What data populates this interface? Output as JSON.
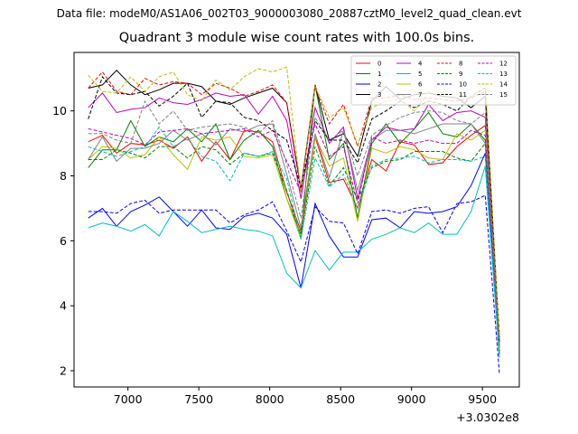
{
  "header": {
    "suptitle": "Data file: modeM0/AS1A06_002T03_9000003080_20887cztM0_level2_quad_clean.evt",
    "title": "Quadrant 3 module wise count rates with 100.0s bins."
  },
  "chart_data": {
    "type": "line",
    "title": "Quadrant 3 module wise count rates with 100.0s bins.",
    "xlabel": "",
    "ylabel": "",
    "x_offset_label": "+3.0302e8",
    "xlim": [
      6620,
      9760
    ],
    "ylim": [
      1.5,
      11.8
    ],
    "x_ticks": [
      7000,
      7500,
      8000,
      8500,
      9000,
      9500
    ],
    "y_ticks": [
      2,
      4,
      6,
      8,
      10
    ],
    "legend_position": "top-right",
    "legend_columns": 4,
    "grid": false,
    "x": [
      6720,
      6820,
      6920,
      7020,
      7120,
      7220,
      7320,
      7420,
      7520,
      7620,
      7720,
      7820,
      7920,
      8020,
      8120,
      8220,
      8320,
      8420,
      8520,
      8620,
      8720,
      8820,
      8920,
      9020,
      9120,
      9220,
      9320,
      9420,
      9520,
      9620
    ],
    "series": [
      {
        "name": "0",
        "color": "#ff0000",
        "dash": false,
        "values": [
          9.05,
          9.25,
          8.7,
          9.0,
          8.95,
          9.1,
          8.85,
          9.2,
          8.45,
          9.05,
          8.5,
          9.4,
          9.35,
          9.05,
          7.5,
          6.3,
          9.2,
          7.8,
          7.9,
          7.0,
          8.5,
          8.15,
          9.05,
          8.95,
          8.35,
          8.4,
          8.9,
          9.25,
          9.55,
          3.1
        ]
      },
      {
        "name": "1",
        "color": "#008000",
        "dash": false,
        "values": [
          8.25,
          8.8,
          8.8,
          9.7,
          8.9,
          9.2,
          9.05,
          9.45,
          9.05,
          9.6,
          8.5,
          9.1,
          9.4,
          8.9,
          7.3,
          6.2,
          10.8,
          8.5,
          9.0,
          6.7,
          9.0,
          9.6,
          9.0,
          9.45,
          9.95,
          9.3,
          9.2,
          9.6,
          9.1,
          2.8
        ]
      },
      {
        "name": "2",
        "color": "#0000ff",
        "dash": false,
        "values": [
          6.7,
          7.0,
          6.45,
          6.9,
          7.1,
          7.35,
          6.9,
          6.45,
          6.95,
          6.4,
          6.35,
          6.75,
          6.85,
          6.7,
          6.2,
          4.55,
          7.15,
          6.15,
          5.5,
          5.5,
          6.65,
          6.7,
          6.4,
          6.9,
          6.85,
          6.9,
          7.05,
          7.7,
          8.7,
          2.5
        ]
      },
      {
        "name": "3",
        "color": "#000000",
        "dash": false,
        "values": [
          10.7,
          10.8,
          11.25,
          10.8,
          10.5,
          10.65,
          10.85,
          10.85,
          10.75,
          10.3,
          10.2,
          10.4,
          10.55,
          10.7,
          10.25,
          7.6,
          10.8,
          9.1,
          9.3,
          8.6,
          10.3,
          10.75,
          10.35,
          10.5,
          10.55,
          10.45,
          10.4,
          10.1,
          10.45,
          2.9
        ]
      },
      {
        "name": "4",
        "color": "#c000c0",
        "dash": false,
        "values": [
          10.1,
          10.55,
          9.95,
          10.05,
          10.1,
          10.4,
          10.25,
          10.2,
          10.35,
          10.55,
          10.45,
          10.5,
          9.9,
          10.45,
          9.7,
          7.3,
          10.1,
          9.0,
          9.5,
          7.3,
          9.1,
          9.5,
          9.4,
          9.45,
          10.2,
          9.7,
          9.95,
          10.0,
          9.8,
          2.7
        ]
      },
      {
        "name": "5",
        "color": "#00bfbf",
        "dash": false,
        "values": [
          6.4,
          6.55,
          6.45,
          6.3,
          6.5,
          6.15,
          6.9,
          6.6,
          6.25,
          6.35,
          6.45,
          6.35,
          6.3,
          6.15,
          5.0,
          4.55,
          5.7,
          5.1,
          5.65,
          5.65,
          6.05,
          6.2,
          6.4,
          6.25,
          6.55,
          6.2,
          6.2,
          6.9,
          8.3,
          2.4
        ]
      },
      {
        "name": "6",
        "color": "#bfbf00",
        "dash": false,
        "values": [
          8.5,
          8.9,
          8.85,
          8.55,
          8.65,
          9.2,
          8.65,
          8.2,
          9.2,
          9.1,
          9.2,
          8.6,
          8.55,
          8.65,
          7.3,
          6.05,
          9.2,
          8.3,
          8.55,
          6.6,
          8.85,
          8.7,
          8.9,
          8.8,
          8.55,
          8.5,
          9.3,
          9.1,
          9.4,
          2.6
        ]
      },
      {
        "name": "7",
        "color": "#808080",
        "dash": false,
        "values": [
          8.5,
          9.2,
          8.45,
          8.85,
          8.85,
          9.0,
          9.4,
          9.1,
          9.3,
          8.95,
          9.45,
          9.35,
          9.55,
          9.6,
          8.05,
          6.4,
          9.3,
          7.95,
          9.4,
          7.55,
          9.1,
          9.4,
          9.4,
          9.3,
          9.45,
          9.6,
          9.6,
          9.6,
          9.0,
          2.8
        ]
      },
      {
        "name": "8",
        "color": "#ff0000",
        "dash": true,
        "values": [
          10.7,
          11.2,
          10.6,
          10.5,
          11.0,
          10.8,
          10.9,
          10.85,
          10.5,
          10.85,
          10.7,
          10.45,
          10.6,
          10.8,
          10.25,
          7.5,
          10.75,
          9.6,
          10.2,
          8.9,
          10.4,
          10.4,
          10.5,
          10.35,
          10.4,
          10.35,
          10.3,
          10.4,
          10.6,
          2.95
        ]
      },
      {
        "name": "9",
        "color": "#008000",
        "dash": true,
        "values": [
          8.5,
          8.5,
          8.8,
          8.7,
          8.55,
          8.9,
          8.9,
          8.55,
          8.9,
          8.8,
          8.35,
          8.7,
          8.6,
          8.7,
          7.55,
          6.1,
          8.9,
          7.7,
          8.25,
          7.25,
          8.25,
          8.45,
          8.5,
          8.75,
          8.75,
          8.75,
          8.55,
          8.45,
          9.0,
          2.6
        ]
      },
      {
        "name": "10",
        "color": "#0000ff",
        "dash": true,
        "values": [
          6.9,
          6.9,
          6.85,
          7.15,
          7.25,
          6.85,
          6.95,
          6.95,
          6.95,
          6.95,
          6.55,
          6.8,
          6.95,
          7.2,
          6.3,
          5.35,
          7.05,
          6.6,
          6.55,
          5.6,
          6.9,
          6.95,
          6.85,
          7.0,
          7.05,
          6.25,
          7.15,
          7.2,
          7.4,
          1.9
        ]
      },
      {
        "name": "11",
        "color": "#000000",
        "dash": true,
        "values": [
          9.75,
          11.05,
          10.55,
          10.5,
          10.6,
          10.15,
          10.45,
          10.85,
          9.8,
          10.3,
          10.25,
          9.8,
          9.7,
          9.4,
          9.1,
          7.65,
          9.7,
          9.1,
          9.1,
          8.4,
          9.75,
          10.0,
          10.3,
          10.1,
          10.3,
          10.2,
          10.0,
          10.45,
          10.7,
          2.9
        ]
      },
      {
        "name": "12",
        "color": "#c000c0",
        "dash": true,
        "values": [
          9.45,
          9.35,
          9.25,
          9.15,
          8.95,
          9.35,
          9.4,
          9.45,
          9.3,
          9.35,
          9.4,
          9.45,
          9.2,
          9.4,
          8.45,
          7.5,
          9.6,
          8.6,
          8.9,
          7.15,
          9.2,
          9.0,
          9.1,
          9.0,
          9.1,
          9.0,
          9.0,
          9.4,
          9.25,
          2.5
        ]
      },
      {
        "name": "13",
        "color": "#00bfbf",
        "dash": true,
        "values": [
          8.9,
          8.75,
          8.6,
          8.75,
          8.9,
          9.5,
          8.9,
          9.15,
          8.6,
          8.45,
          7.85,
          8.7,
          8.6,
          8.75,
          7.9,
          6.05,
          8.55,
          7.65,
          8.05,
          7.0,
          8.3,
          8.5,
          8.55,
          8.6,
          8.4,
          8.5,
          8.5,
          8.45,
          8.6,
          2.4
        ]
      },
      {
        "name": "14",
        "color": "#bfbf00",
        "dash": true,
        "values": [
          11.1,
          10.6,
          10.55,
          11.05,
          10.6,
          11.05,
          11.2,
          10.5,
          10.3,
          10.95,
          10.65,
          11.05,
          11.3,
          11.2,
          11.35,
          7.5,
          10.75,
          9.8,
          10.1,
          8.95,
          10.1,
          10.3,
          10.35,
          10.0,
          10.6,
          10.55,
          10.5,
          10.4,
          10.9,
          3.0
        ]
      },
      {
        "name": "15",
        "color": "#808080",
        "dash": true,
        "values": [
          9.3,
          9.3,
          9.1,
          9.0,
          10.3,
          9.6,
          10.0,
          9.4,
          9.5,
          9.55,
          9.6,
          9.5,
          9.3,
          9.7,
          8.35,
          6.7,
          9.8,
          9.1,
          9.4,
          8.0,
          9.25,
          9.55,
          9.8,
          9.95,
          10.0,
          9.95,
          9.7,
          9.6,
          9.95,
          2.7
        ]
      }
    ]
  }
}
